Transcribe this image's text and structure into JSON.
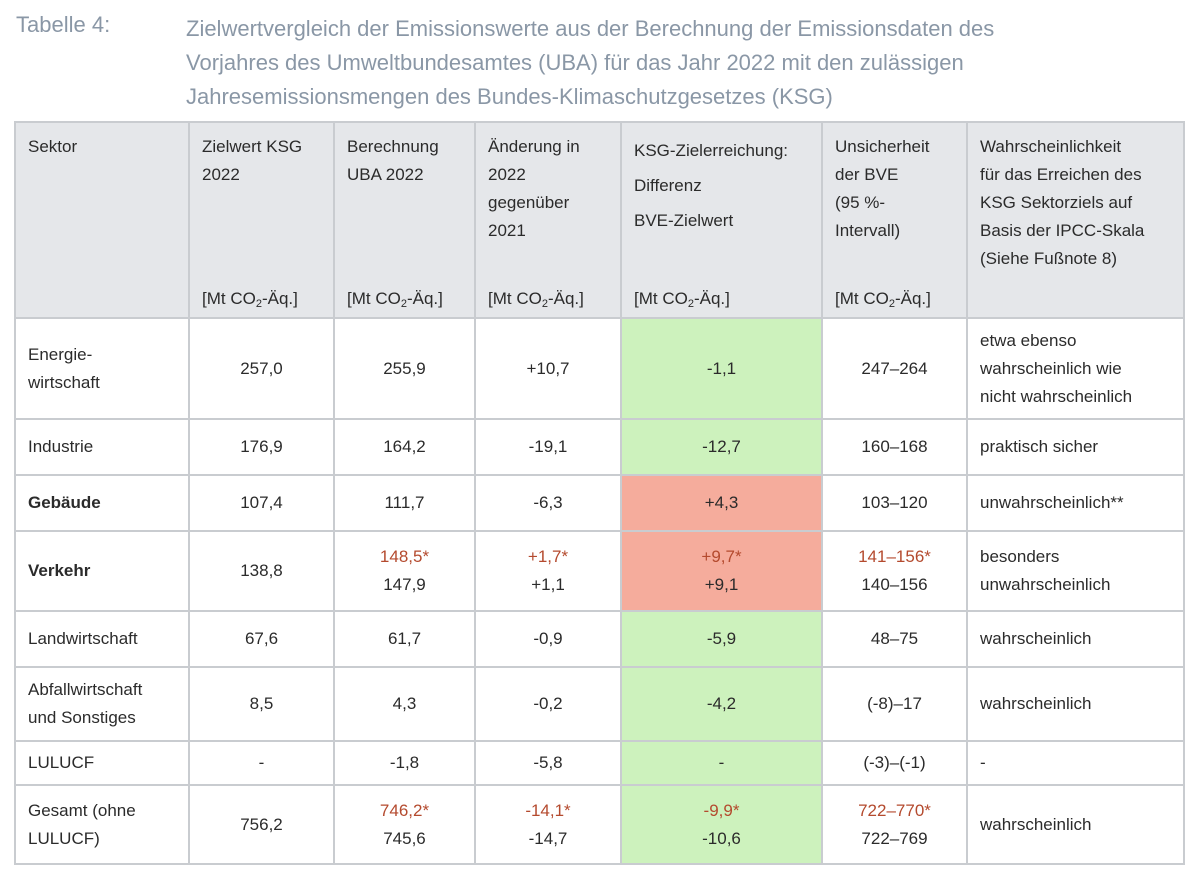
{
  "caption": {
    "label": "Tabelle 4:",
    "lines": [
      "Zielwertvergleich der Emissionswerte aus der Berechnung der Emissionsdaten des",
      "Vorjahres des Umweltbundesamtes (UBA) für das Jahr 2022 mit den zulässigen",
      "Jahresemissionsmengen des Bundes-Klimaschutzgesetzes (KSG)"
    ]
  },
  "colors": {
    "target_met": "#cdf2bd",
    "target_missed": "#f5ac9c",
    "revised_value": "#b44a2e"
  },
  "headers": {
    "sector": "Sektor",
    "target": {
      "lines": [
        "Zielwert KSG",
        "2022"
      ],
      "unit_pre": "[Mt CO",
      "unit_sub": "2",
      "unit_post": "-Äq.]"
    },
    "uba": {
      "lines": [
        "Berechnung",
        "UBA 2022"
      ],
      "unit_pre": "[Mt CO",
      "unit_sub": "2",
      "unit_post": "-Äq.]"
    },
    "change": {
      "lines": [
        "Änderung in",
        "2022",
        "gegenüber",
        "2021"
      ],
      "unit_pre": "[Mt CO",
      "unit_sub": "2",
      "unit_post": "-Äq.]"
    },
    "ksg": {
      "lines": [
        "KSG-Zielerreichung:",
        "Differenz",
        "BVE-Zielwert"
      ],
      "unit_pre": "[Mt CO",
      "unit_sub": "2",
      "unit_post": "-Äq.]"
    },
    "uncert": {
      "lines": [
        "Unsicherheit",
        "der BVE",
        "(95 %-",
        "Intervall)"
      ],
      "unit_pre": "[Mt CO",
      "unit_sub": "2",
      "unit_post": "-Äq.]"
    },
    "prob": {
      "lines": [
        "Wahrscheinlichkeit",
        "für das Erreichen des",
        "KSG Sektorziels auf",
        "Basis der IPCC-Skala",
        "(Siehe Fußnote 8)"
      ]
    }
  },
  "rows": {
    "energie": {
      "sector_a": "Energie-",
      "sector_b": "wirtschaft",
      "target": "257,0",
      "uba": "255,9",
      "change": "+10,7",
      "diff": "-1,1",
      "uncert": "247–264",
      "prob_a": "etwa ebenso",
      "prob_b": "wahrscheinlich wie",
      "prob_c": "nicht wahrscheinlich"
    },
    "industrie": {
      "sector": "Industrie",
      "target": "176,9",
      "uba": "164,2",
      "change": "-19,1",
      "diff": "-12,7",
      "uncert": "160–168",
      "prob": "praktisch sicher"
    },
    "gebaeude": {
      "sector": "Gebäude",
      "target": "107,4",
      "uba": "111,7",
      "change": "-6,3",
      "diff": "+4,3",
      "uncert": "103–120",
      "prob": "unwahrscheinlich**"
    },
    "verkehr": {
      "sector": "Verkehr",
      "target": "138,8",
      "uba_star": "148,5*",
      "uba": "147,9",
      "change_star": "+1,7*",
      "change": "+1,1",
      "diff_star": "+9,7*",
      "diff": "+9,1",
      "uncert_star": "141–156*",
      "uncert": "140–156",
      "prob_a": "besonders",
      "prob_b": "unwahrscheinlich"
    },
    "landwirtschaft": {
      "sector": "Landwirtschaft",
      "target": "67,6",
      "uba": "61,7",
      "change": "-0,9",
      "diff": "-5,9",
      "uncert": "48–75",
      "prob": "wahrscheinlich"
    },
    "abfall": {
      "sector_a": "Abfallwirtschaft",
      "sector_b": "und Sonstiges",
      "target": "8,5",
      "uba": "4,3",
      "change": "-0,2",
      "diff": "-4,2",
      "uncert": "(-8)–17",
      "prob": "wahrscheinlich"
    },
    "lulucf": {
      "sector": "LULUCF",
      "target": "-",
      "uba": "-1,8",
      "change": "-5,8",
      "diff": "-",
      "uncert": "(-3)–(-1)",
      "prob": "-"
    },
    "gesamt": {
      "sector_a": "Gesamt (ohne",
      "sector_b": "LULUCF)",
      "target": "756,2",
      "uba_star": "746,2*",
      "uba": "745,6",
      "change_star": "-14,1*",
      "change": "-14,7",
      "diff_star": "-9,9*",
      "diff": "-10,6",
      "uncert_star": "722–770*",
      "uncert": "722–769",
      "prob": "wahrscheinlich"
    }
  }
}
